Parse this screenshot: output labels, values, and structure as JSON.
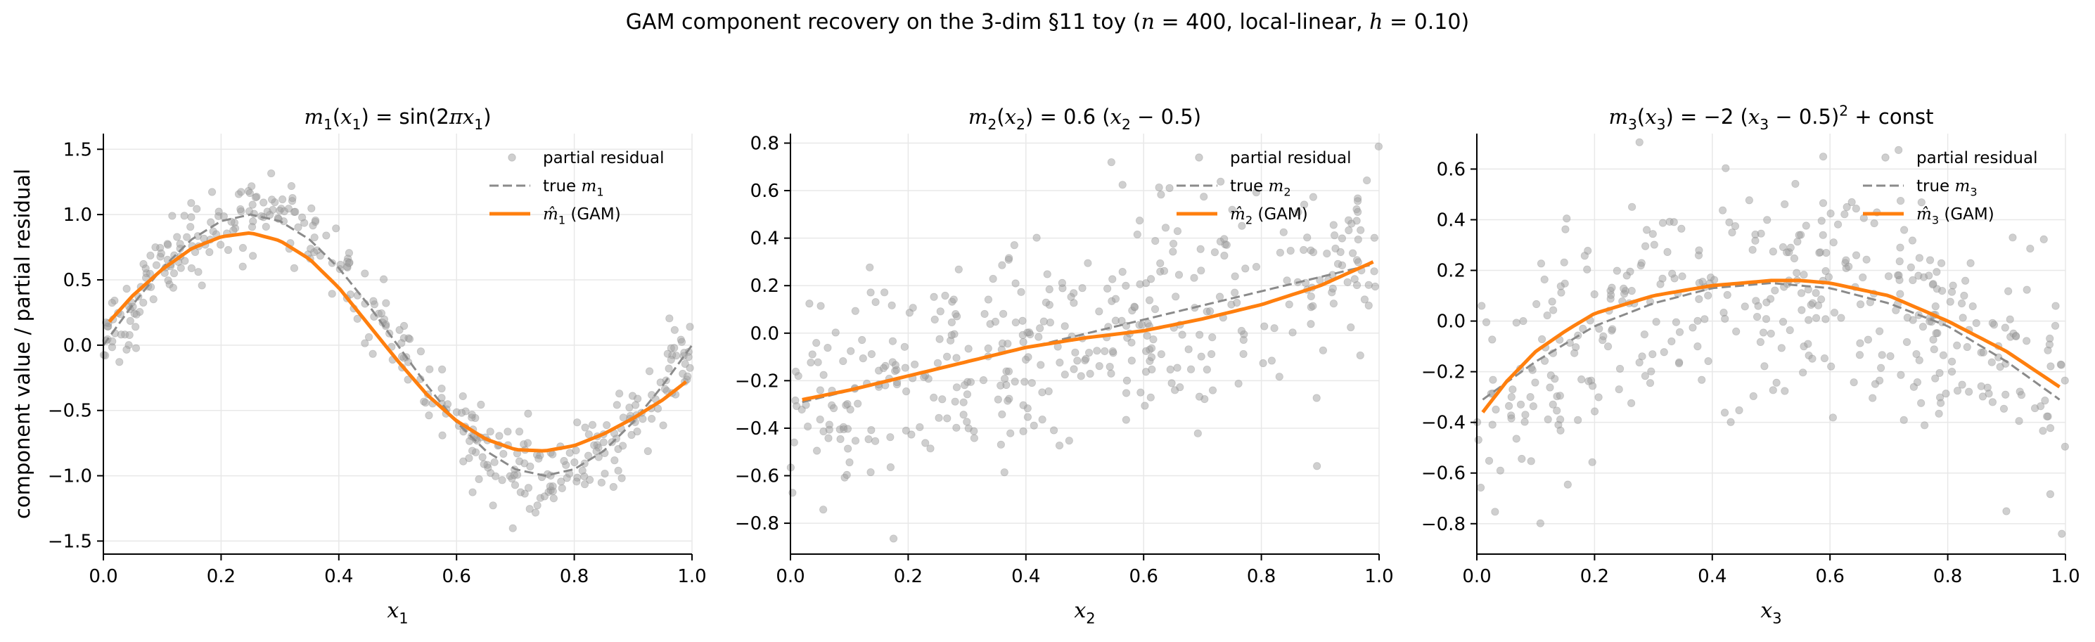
{
  "figure_title": "GAM component recovery on the 3-dim §11 toy  (n = 400, local-linear, h = 0.10)",
  "figure_title_parts": {
    "prefix": "GAM component recovery on the 3-dim §11 toy  (",
    "n_sym": "n",
    "n_val": " = 400, local-linear, ",
    "h_sym": "h",
    "h_val": " = 0.10)"
  },
  "colors": {
    "residual": "#a0a0a0",
    "true_curve": "#8a8a8a",
    "gam_curve": "#ff7f0e",
    "grid": "#e8e8e8",
    "axis": "#000000"
  },
  "chart_data": [
    {
      "type": "scatter",
      "title": "m1(x1) = sin(2πx1)",
      "xlabel": "x1",
      "ylabel": "component value / partial residual",
      "xlim": [
        0,
        1
      ],
      "ylim": [
        -1.6,
        1.62
      ],
      "xticks": [
        0.0,
        0.2,
        0.4,
        0.6,
        0.8,
        1.0
      ],
      "xtick_labels": [
        "0.0",
        "0.2",
        "0.4",
        "0.6",
        "0.8",
        "1.0"
      ],
      "yticks": [
        -1.5,
        -1.0,
        -0.5,
        0.0,
        0.5,
        1.0,
        1.5
      ],
      "ytick_labels": [
        "−1.5",
        "−1.0",
        "−0.5",
        "0.0",
        "0.5",
        "1.0",
        "1.5"
      ],
      "grid": true,
      "legend_position": "top-right",
      "legend": [
        "partial residual",
        "true m1",
        "m̂1 (GAM)"
      ],
      "series": [
        {
          "name": "partial residual",
          "kind": "scatter",
          "residual_spread": 0.16,
          "n_points": 400
        },
        {
          "name": "true m1",
          "kind": "dashed-line",
          "x": [
            0.0,
            0.05,
            0.1,
            0.15,
            0.2,
            0.25,
            0.3,
            0.35,
            0.4,
            0.45,
            0.5,
            0.55,
            0.6,
            0.65,
            0.7,
            0.75,
            0.8,
            0.85,
            0.9,
            0.95,
            1.0
          ],
          "values": [
            0.0,
            0.31,
            0.59,
            0.81,
            0.95,
            1.0,
            0.95,
            0.81,
            0.59,
            0.31,
            0.0,
            -0.31,
            -0.59,
            -0.81,
            -0.95,
            -1.0,
            -0.95,
            -0.81,
            -0.59,
            -0.31,
            0.0
          ]
        },
        {
          "name": "m̂1 (GAM)",
          "kind": "line",
          "x": [
            0.01,
            0.05,
            0.1,
            0.15,
            0.2,
            0.25,
            0.3,
            0.35,
            0.4,
            0.45,
            0.5,
            0.55,
            0.6,
            0.65,
            0.7,
            0.75,
            0.8,
            0.85,
            0.9,
            0.95,
            0.99
          ],
          "values": [
            0.18,
            0.38,
            0.58,
            0.74,
            0.83,
            0.86,
            0.8,
            0.66,
            0.44,
            0.16,
            -0.12,
            -0.38,
            -0.58,
            -0.72,
            -0.8,
            -0.81,
            -0.77,
            -0.68,
            -0.56,
            -0.42,
            -0.28
          ]
        }
      ]
    },
    {
      "type": "scatter",
      "title": "m2(x2) = 0.6 (x2 − 0.5)",
      "xlabel": "x2",
      "ylabel": "",
      "xlim": [
        0,
        1
      ],
      "ylim": [
        -0.93,
        0.84
      ],
      "xticks": [
        0.0,
        0.2,
        0.4,
        0.6,
        0.8,
        1.0
      ],
      "xtick_labels": [
        "0.0",
        "0.2",
        "0.4",
        "0.6",
        "0.8",
        "1.0"
      ],
      "yticks": [
        -0.8,
        -0.6,
        -0.4,
        -0.2,
        0.0,
        0.2,
        0.4,
        0.6,
        0.8
      ],
      "ytick_labels": [
        "−0.8",
        "−0.6",
        "−0.4",
        "−0.2",
        "0.0",
        "0.2",
        "0.4",
        "0.6",
        "0.8"
      ],
      "grid": true,
      "legend_position": "top-right",
      "legend": [
        "partial residual",
        "true m2",
        "m̂2 (GAM)"
      ],
      "series": [
        {
          "name": "partial residual",
          "kind": "scatter",
          "residual_spread": 0.22,
          "n_points": 400
        },
        {
          "name": "true m2",
          "kind": "dashed-line",
          "x": [
            0.02,
            0.99
          ],
          "values": [
            -0.29,
            0.29
          ]
        },
        {
          "name": "m̂2 (GAM)",
          "kind": "line",
          "x": [
            0.02,
            0.1,
            0.2,
            0.3,
            0.4,
            0.5,
            0.6,
            0.7,
            0.8,
            0.9,
            0.99
          ],
          "values": [
            -0.28,
            -0.24,
            -0.18,
            -0.12,
            -0.06,
            -0.02,
            0.01,
            0.06,
            0.12,
            0.2,
            0.3
          ]
        }
      ]
    },
    {
      "type": "scatter",
      "title": "m3(x3) = −2 (x3 − 0.5)² + const",
      "xlabel": "x3",
      "ylabel": "",
      "xlim": [
        0,
        1
      ],
      "ylim": [
        -0.92,
        0.74
      ],
      "xticks": [
        0.0,
        0.2,
        0.4,
        0.6,
        0.8,
        1.0
      ],
      "xtick_labels": [
        "0.0",
        "0.2",
        "0.4",
        "0.6",
        "0.8",
        "1.0"
      ],
      "yticks": [
        -0.8,
        -0.6,
        -0.4,
        -0.2,
        0.0,
        0.2,
        0.4,
        0.6
      ],
      "ytick_labels": [
        "−0.8",
        "−0.6",
        "−0.4",
        "−0.2",
        "0.0",
        "0.2",
        "0.4",
        "0.6"
      ],
      "grid": true,
      "legend_position": "top-right",
      "legend": [
        "partial residual",
        "true m3",
        "m̂3 (GAM)"
      ],
      "series": [
        {
          "name": "partial residual",
          "kind": "scatter",
          "residual_spread": 0.22,
          "n_points": 400
        },
        {
          "name": "true m3",
          "kind": "dashed-line",
          "x": [
            0.01,
            0.1,
            0.2,
            0.3,
            0.4,
            0.5,
            0.6,
            0.7,
            0.8,
            0.9,
            0.99
          ],
          "values": [
            -0.31,
            -0.16,
            -0.02,
            0.07,
            0.13,
            0.15,
            0.13,
            0.07,
            -0.02,
            -0.16,
            -0.31
          ]
        },
        {
          "name": "m̂3 (GAM)",
          "kind": "line",
          "x": [
            0.01,
            0.05,
            0.1,
            0.15,
            0.2,
            0.3,
            0.4,
            0.5,
            0.55,
            0.6,
            0.7,
            0.8,
            0.9,
            0.99
          ],
          "values": [
            -0.36,
            -0.24,
            -0.12,
            -0.04,
            0.03,
            0.1,
            0.14,
            0.16,
            0.16,
            0.15,
            0.1,
            0.0,
            -0.12,
            -0.26
          ]
        }
      ]
    }
  ]
}
